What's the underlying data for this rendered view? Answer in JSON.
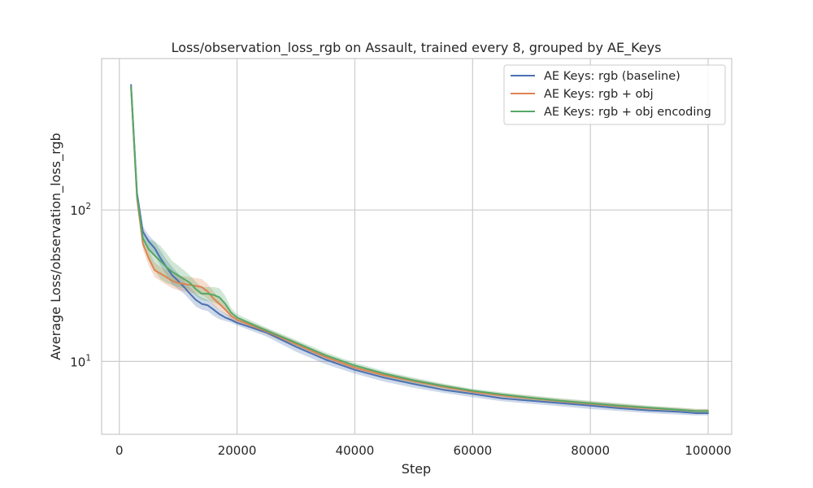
{
  "chart_data": {
    "type": "line",
    "title": "Loss/observation_loss_rgb on Assault, trained every 8, grouped by AE_Keys",
    "xlabel": "Step",
    "ylabel": "Average Loss/observation_loss_rgb",
    "xlim": [
      -3000,
      104000
    ],
    "ylim": [
      3.3,
      1000
    ],
    "yscale": "log",
    "xticks": [
      0,
      20000,
      40000,
      60000,
      80000,
      100000
    ],
    "xtick_labels": [
      "0",
      "20000",
      "40000",
      "60000",
      "80000",
      "100000"
    ],
    "yticks": [
      10,
      100
    ],
    "ytick_base": "10",
    "ytick_exponents": [
      "1",
      "2"
    ],
    "grid": true,
    "legend_position": "top-right",
    "series": [
      {
        "name": "AE Keys: rgb (baseline)",
        "color": "#4c72b0",
        "x": [
          2000,
          3000,
          4000,
          5000,
          6000,
          7000,
          8000,
          9000,
          10000,
          11000,
          12000,
          13000,
          14000,
          15000,
          16000,
          17000,
          18000,
          19000,
          20000,
          25000,
          30000,
          35000,
          40000,
          45000,
          50000,
          55000,
          60000,
          65000,
          70000,
          75000,
          80000,
          85000,
          90000,
          95000,
          98000,
          100000
        ],
        "y": [
          670,
          130,
          72,
          62,
          56,
          48,
          42,
          37,
          34,
          31,
          28,
          25.5,
          24,
          23.5,
          22,
          20.5,
          19.5,
          18.8,
          18,
          15.5,
          12.5,
          10.3,
          8.8,
          7.8,
          7.1,
          6.5,
          6.1,
          5.7,
          5.5,
          5.3,
          5.1,
          4.9,
          4.75,
          4.65,
          4.55,
          4.55
        ],
        "band_lower": [
          640,
          120,
          66,
          56,
          50,
          43,
          37,
          32,
          30,
          28,
          25.5,
          23,
          22,
          21.5,
          20,
          19,
          18.5,
          18,
          17.3,
          14.6,
          11.6,
          9.6,
          8.3,
          7.35,
          6.7,
          6.2,
          5.8,
          5.45,
          5.25,
          5.05,
          4.85,
          4.7,
          4.55,
          4.45,
          4.4,
          4.4
        ],
        "band_upper": [
          700,
          140,
          78,
          68,
          62,
          54,
          47,
          42,
          38,
          34,
          31,
          28,
          26.5,
          25.5,
          24,
          22,
          20.8,
          19.8,
          19,
          16.3,
          13.3,
          10.9,
          9.2,
          8.2,
          7.45,
          6.8,
          6.35,
          5.95,
          5.7,
          5.5,
          5.3,
          5.1,
          4.95,
          4.8,
          4.7,
          4.7
        ]
      },
      {
        "name": "AE Keys: rgb + obj",
        "color": "#dd8452",
        "x": [
          2000,
          3000,
          4000,
          5000,
          6000,
          7000,
          8000,
          9000,
          10000,
          11000,
          12000,
          13000,
          14000,
          15000,
          16000,
          17000,
          18000,
          19000,
          20000,
          25000,
          30000,
          35000,
          40000,
          45000,
          50000,
          55000,
          60000,
          65000,
          70000,
          75000,
          80000,
          85000,
          90000,
          95000,
          98000,
          100000
        ],
        "y": [
          640,
          120,
          60,
          48,
          40,
          38,
          36,
          34,
          33,
          32.5,
          32,
          31.5,
          31,
          29,
          26,
          24,
          22,
          20,
          18.8,
          15.8,
          13,
          10.7,
          9.1,
          8.1,
          7.4,
          6.8,
          6.3,
          5.95,
          5.7,
          5.45,
          5.25,
          5.05,
          4.9,
          4.8,
          4.7,
          4.7
        ],
        "band_lower": [
          610,
          110,
          55,
          43,
          36,
          34,
          32,
          30.5,
          29.5,
          29,
          28.5,
          28,
          27.5,
          26,
          23.5,
          22,
          20.5,
          19,
          18,
          15.1,
          12.4,
          10.2,
          8.7,
          7.75,
          7.1,
          6.55,
          6.1,
          5.75,
          5.5,
          5.25,
          5.05,
          4.9,
          4.75,
          4.65,
          4.55,
          4.55
        ],
        "band_upper": [
          670,
          130,
          66,
          54,
          45,
          42,
          40,
          38,
          37,
          36.5,
          36,
          35.5,
          35,
          32.5,
          29,
          26,
          23.5,
          21,
          19.6,
          16.5,
          13.6,
          11.2,
          9.5,
          8.45,
          7.7,
          7.05,
          6.5,
          6.15,
          5.9,
          5.65,
          5.45,
          5.25,
          5.05,
          4.95,
          4.85,
          4.85
        ]
      },
      {
        "name": "AE Keys: rgb + obj encoding",
        "color": "#55a868",
        "x": [
          2000,
          3000,
          4000,
          5000,
          6000,
          7000,
          8000,
          9000,
          10000,
          11000,
          12000,
          13000,
          14000,
          15000,
          16000,
          17000,
          18000,
          19000,
          20000,
          25000,
          30000,
          35000,
          40000,
          45000,
          50000,
          55000,
          60000,
          65000,
          70000,
          75000,
          80000,
          85000,
          90000,
          95000,
          98000,
          100000
        ],
        "y": [
          650,
          125,
          65,
          55,
          50,
          46,
          42,
          39,
          37,
          35,
          33,
          30,
          28,
          28,
          27.5,
          26.5,
          24,
          21,
          19.5,
          16,
          13.3,
          11,
          9.4,
          8.3,
          7.5,
          6.9,
          6.4,
          6.05,
          5.75,
          5.5,
          5.3,
          5.1,
          4.95,
          4.8,
          4.7,
          4.7
        ],
        "band_lower": [
          620,
          115,
          58,
          47,
          40,
          35,
          33,
          32,
          31,
          30.5,
          29.5,
          27,
          25.5,
          25,
          24.5,
          23.5,
          22,
          20,
          18.7,
          15.3,
          12.7,
          10.5,
          9,
          7.95,
          7.2,
          6.65,
          6.2,
          5.85,
          5.55,
          5.3,
          5.1,
          4.95,
          4.8,
          4.65,
          4.55,
          4.55
        ],
        "band_upper": [
          680,
          135,
          72,
          64,
          62,
          58,
          52,
          46,
          43,
          40,
          37,
          33.5,
          31,
          31,
          31,
          30.5,
          27,
          22.5,
          20.5,
          16.7,
          13.9,
          11.5,
          9.8,
          8.65,
          7.8,
          7.15,
          6.6,
          6.25,
          5.95,
          5.7,
          5.5,
          5.3,
          5.1,
          4.95,
          4.85,
          4.85
        ]
      }
    ]
  }
}
